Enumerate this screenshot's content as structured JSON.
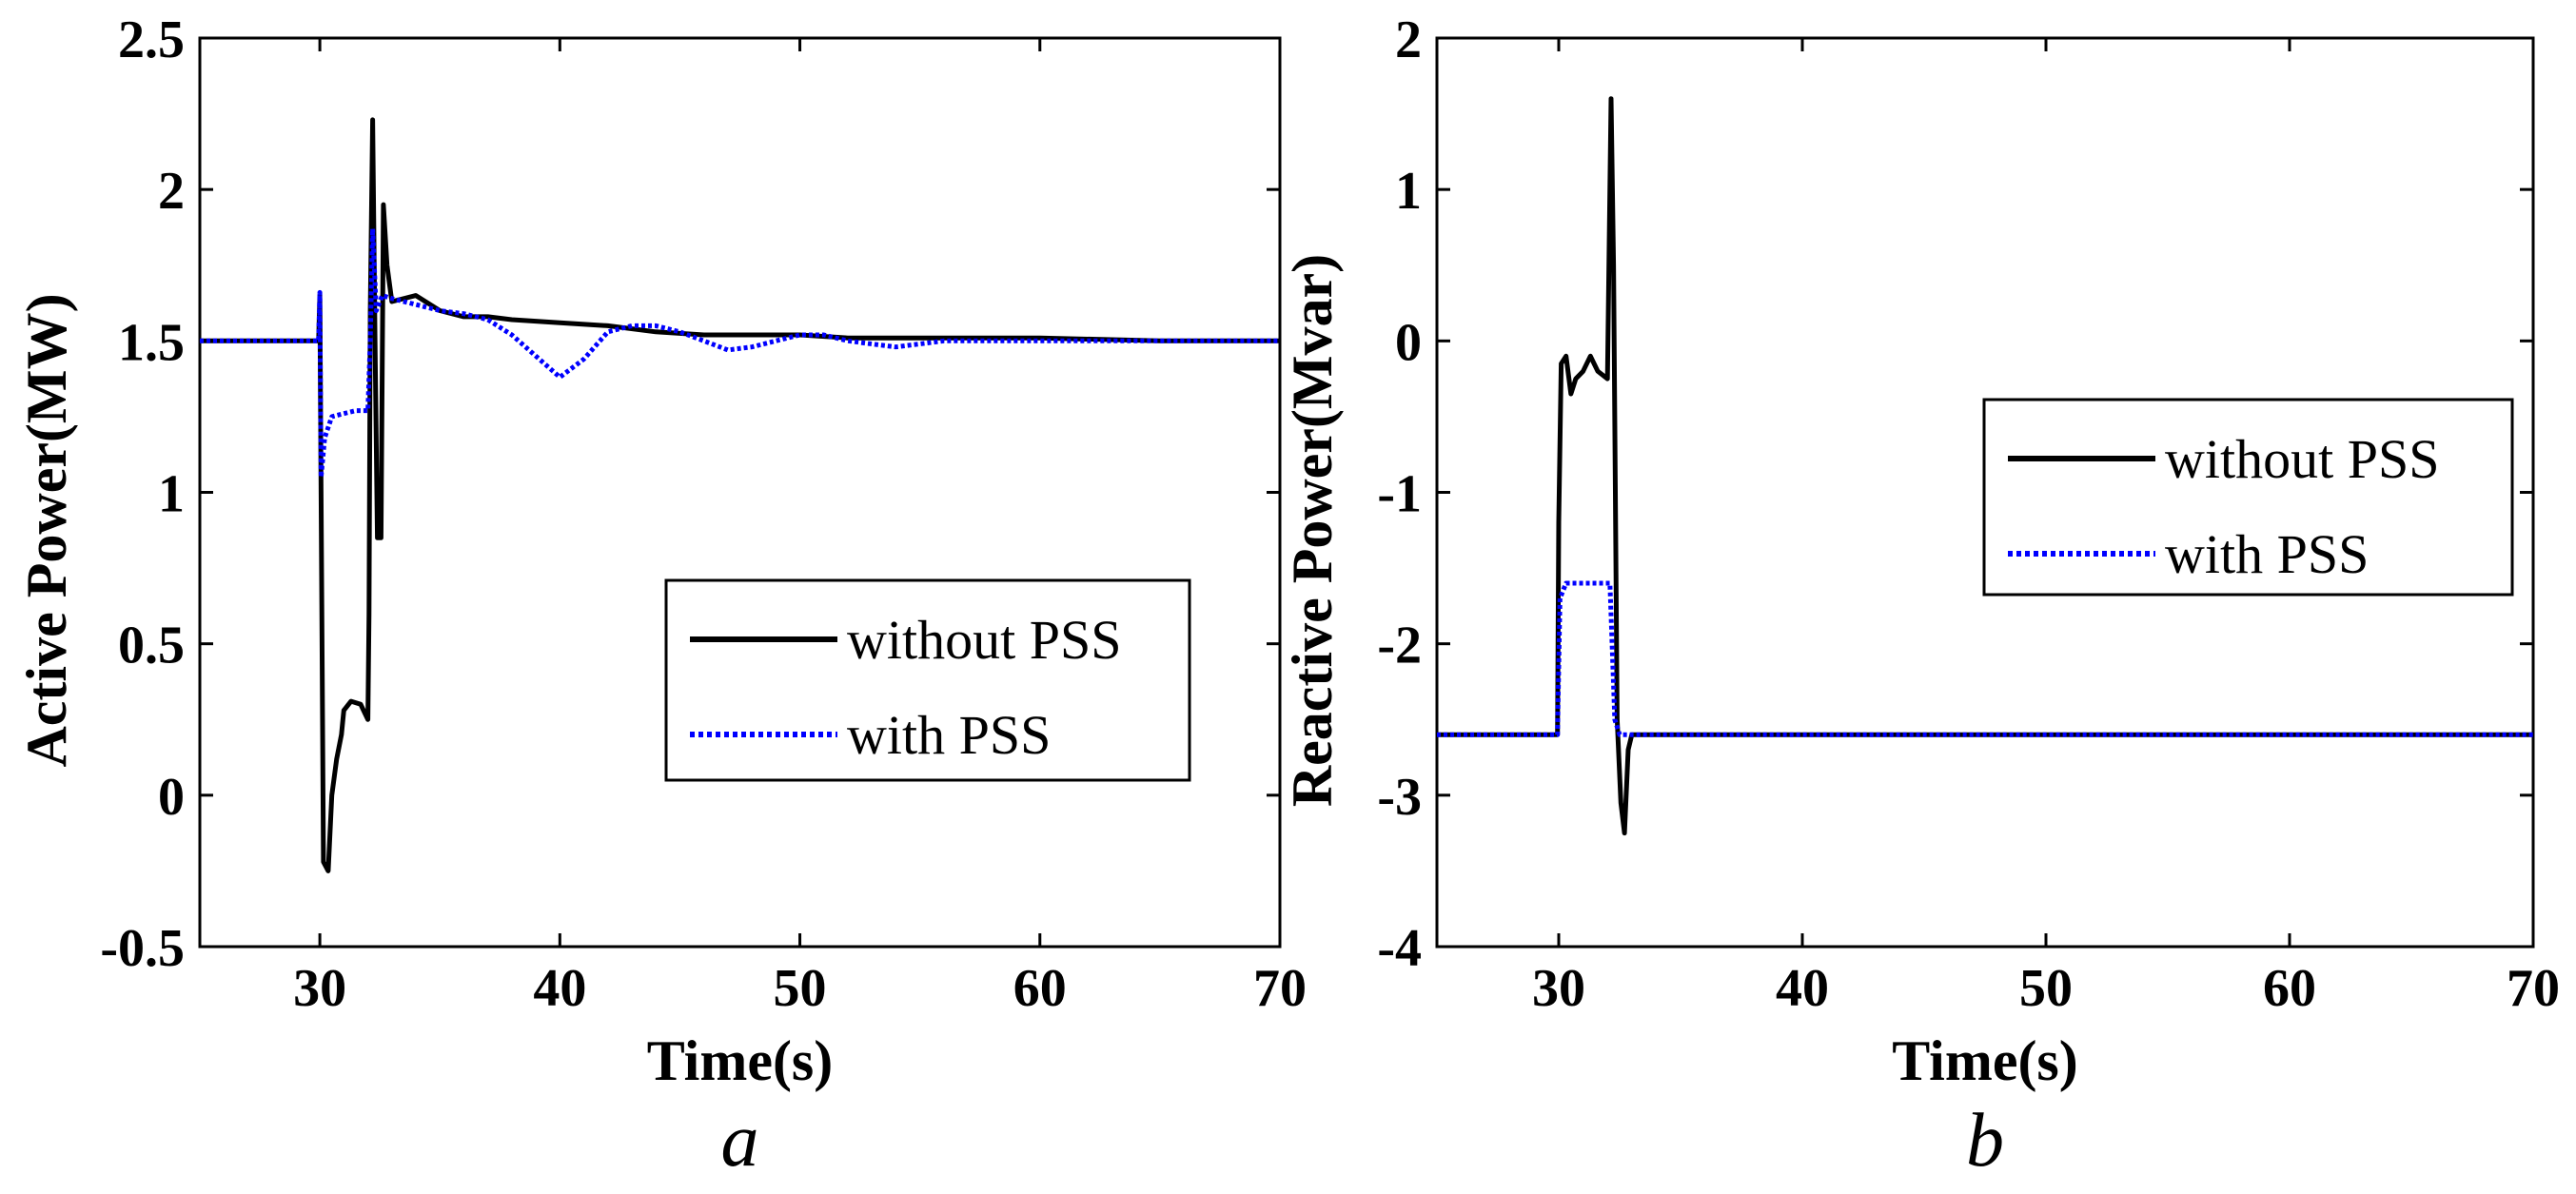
{
  "chart_data": [
    {
      "type": "line",
      "caption": "a",
      "xlabel": "Time(s)",
      "ylabel": "Active Power(MW)",
      "xlim": [
        25,
        70
      ],
      "ylim": [
        -0.5,
        2.5
      ],
      "xticks": [
        30,
        40,
        50,
        60,
        70
      ],
      "xtick_labels": [
        "30",
        "40",
        "50",
        "60",
        "70"
      ],
      "yticks": [
        -0.5,
        0,
        0.5,
        1,
        1.5,
        2,
        2.5
      ],
      "ytick_labels": [
        "-0.5",
        "0",
        "0.5",
        "1",
        "1.5",
        "2",
        "2.5"
      ],
      "legend_position": "lower-right",
      "series": [
        {
          "name": "without PSS",
          "color": "#000000",
          "style": "solid",
          "points": [
            [
              25,
              1.5
            ],
            [
              29.95,
              1.5
            ],
            [
              30.0,
              1.65
            ],
            [
              30.05,
              1.0
            ],
            [
              30.15,
              -0.22
            ],
            [
              30.35,
              -0.25
            ],
            [
              30.5,
              0.0
            ],
            [
              30.7,
              0.12
            ],
            [
              30.9,
              0.2
            ],
            [
              31.0,
              0.28
            ],
            [
              31.3,
              0.31
            ],
            [
              31.7,
              0.3
            ],
            [
              32.0,
              0.25
            ],
            [
              32.05,
              0.6
            ],
            [
              32.1,
              1.6
            ],
            [
              32.2,
              2.23
            ],
            [
              32.3,
              1.5
            ],
            [
              32.4,
              0.85
            ],
            [
              32.55,
              0.85
            ],
            [
              32.65,
              1.95
            ],
            [
              32.8,
              1.75
            ],
            [
              33.0,
              1.63
            ],
            [
              34.0,
              1.65
            ],
            [
              35.0,
              1.6
            ],
            [
              36.0,
              1.58
            ],
            [
              37.0,
              1.58
            ],
            [
              38.0,
              1.57
            ],
            [
              40.0,
              1.56
            ],
            [
              42.0,
              1.55
            ],
            [
              44.0,
              1.53
            ],
            [
              46.0,
              1.52
            ],
            [
              48.0,
              1.52
            ],
            [
              50.0,
              1.52
            ],
            [
              52.0,
              1.51
            ],
            [
              55.0,
              1.51
            ],
            [
              60.0,
              1.51
            ],
            [
              65.0,
              1.5
            ],
            [
              70.0,
              1.5
            ]
          ]
        },
        {
          "name": "with PSS",
          "color": "#0000ff",
          "style": "dotted",
          "points": [
            [
              25,
              1.5
            ],
            [
              29.95,
              1.5
            ],
            [
              30.0,
              1.66
            ],
            [
              30.05,
              1.05
            ],
            [
              30.2,
              1.18
            ],
            [
              30.5,
              1.25
            ],
            [
              31.0,
              1.26
            ],
            [
              31.5,
              1.27
            ],
            [
              32.0,
              1.27
            ],
            [
              32.1,
              1.5
            ],
            [
              32.2,
              1.87
            ],
            [
              32.35,
              1.6
            ],
            [
              32.6,
              1.65
            ],
            [
              33.0,
              1.64
            ],
            [
              34.0,
              1.62
            ],
            [
              35.0,
              1.6
            ],
            [
              36.0,
              1.59
            ],
            [
              37.0,
              1.57
            ],
            [
              38.0,
              1.52
            ],
            [
              39.0,
              1.45
            ],
            [
              40.0,
              1.38
            ],
            [
              41.0,
              1.44
            ],
            [
              42.0,
              1.53
            ],
            [
              43.0,
              1.55
            ],
            [
              44.0,
              1.55
            ],
            [
              45.0,
              1.53
            ],
            [
              46.0,
              1.5
            ],
            [
              47.0,
              1.47
            ],
            [
              48.0,
              1.48
            ],
            [
              49.0,
              1.5
            ],
            [
              50.0,
              1.52
            ],
            [
              51.0,
              1.52
            ],
            [
              52.0,
              1.5
            ],
            [
              53.0,
              1.49
            ],
            [
              54.0,
              1.48
            ],
            [
              55.0,
              1.49
            ],
            [
              56.0,
              1.5
            ],
            [
              60.0,
              1.5
            ],
            [
              65.0,
              1.5
            ],
            [
              70.0,
              1.5
            ]
          ]
        }
      ]
    },
    {
      "type": "line",
      "caption": "b",
      "xlabel": "Time(s)",
      "ylabel": "Reactive Power(Mvar)",
      "xlim": [
        25,
        70
      ],
      "ylim": [
        -4,
        2
      ],
      "xticks": [
        30,
        40,
        50,
        60,
        70
      ],
      "xtick_labels": [
        "30",
        "40",
        "50",
        "60",
        "70"
      ],
      "yticks": [
        -4,
        -3,
        -2,
        -1,
        0,
        1,
        2
      ],
      "ytick_labels": [
        "-4",
        "-3",
        "-2",
        "-1",
        "0",
        "1",
        "2"
      ],
      "legend_position": "upper-right",
      "series": [
        {
          "name": "without PSS",
          "color": "#000000",
          "style": "solid",
          "points": [
            [
              25,
              -2.6
            ],
            [
              29.95,
              -2.6
            ],
            [
              30.0,
              -1.2
            ],
            [
              30.1,
              -0.15
            ],
            [
              30.3,
              -0.1
            ],
            [
              30.5,
              -0.35
            ],
            [
              30.7,
              -0.25
            ],
            [
              31.0,
              -0.2
            ],
            [
              31.3,
              -0.1
            ],
            [
              31.6,
              -0.2
            ],
            [
              32.0,
              -0.25
            ],
            [
              32.15,
              1.6
            ],
            [
              32.25,
              0.5
            ],
            [
              32.4,
              -2.5
            ],
            [
              32.55,
              -3.05
            ],
            [
              32.7,
              -3.25
            ],
            [
              32.85,
              -2.7
            ],
            [
              33.0,
              -2.6
            ],
            [
              40,
              -2.6
            ],
            [
              50,
              -2.6
            ],
            [
              60,
              -2.6
            ],
            [
              70,
              -2.6
            ]
          ]
        },
        {
          "name": "with PSS",
          "color": "#0000ff",
          "style": "dotted",
          "points": [
            [
              25,
              -2.6
            ],
            [
              29.95,
              -2.6
            ],
            [
              30.05,
              -1.7
            ],
            [
              30.3,
              -1.6
            ],
            [
              31.0,
              -1.6
            ],
            [
              32.0,
              -1.6
            ],
            [
              32.1,
              -1.6
            ],
            [
              32.3,
              -2.5
            ],
            [
              32.5,
              -2.6
            ],
            [
              40,
              -2.6
            ],
            [
              50,
              -2.6
            ],
            [
              60,
              -2.6
            ],
            [
              70,
              -2.6
            ]
          ]
        }
      ]
    }
  ]
}
